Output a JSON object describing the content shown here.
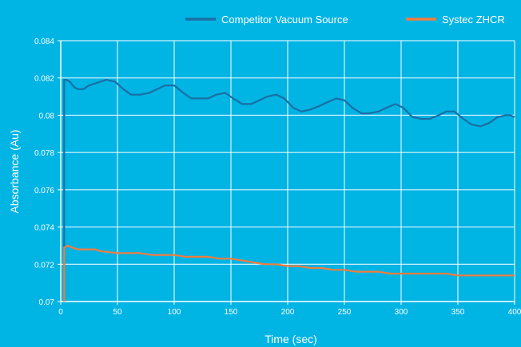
{
  "colors": {
    "background": "#00b4e4",
    "grid": "#ffffff",
    "text": "#ffffff"
  },
  "chart_data": {
    "type": "line",
    "title": "",
    "xlabel": "Time (sec)",
    "ylabel": "Absorbance (Au)",
    "xlim": [
      0,
      400
    ],
    "ylim": [
      0.07,
      0.084
    ],
    "x_ticks": [
      0,
      50,
      100,
      150,
      200,
      250,
      300,
      350,
      400
    ],
    "x_tick_labels": [
      "0",
      "50",
      "100",
      "150",
      "200",
      "250",
      "300",
      "350",
      "400"
    ],
    "y_ticks": [
      0.07,
      0.072,
      0.074,
      0.076,
      0.078,
      0.08,
      0.082,
      0.084
    ],
    "y_tick_labels": [
      "0.07",
      "0.072",
      "0.074",
      "0.076",
      "0.078",
      "0.08",
      "0.082",
      "0.084"
    ],
    "grid": true,
    "legend_position": "top-right",
    "series": [
      {
        "name": "Competitor Vacuum Source",
        "color": "#1a6fa4",
        "points": [
          [
            3,
            0.07
          ],
          [
            3,
            0.0819
          ],
          [
            5,
            0.0819
          ],
          [
            8,
            0.0818
          ],
          [
            12,
            0.0815
          ],
          [
            15,
            0.0814
          ],
          [
            20,
            0.0814
          ],
          [
            25,
            0.0816
          ],
          [
            30,
            0.0817
          ],
          [
            35,
            0.0818
          ],
          [
            40,
            0.0819
          ],
          [
            48,
            0.0818
          ],
          [
            55,
            0.0814
          ],
          [
            62,
            0.0811
          ],
          [
            70,
            0.0811
          ],
          [
            78,
            0.0812
          ],
          [
            85,
            0.0814
          ],
          [
            92,
            0.0816
          ],
          [
            100,
            0.0816
          ],
          [
            108,
            0.0812
          ],
          [
            115,
            0.0809
          ],
          [
            122,
            0.0809
          ],
          [
            130,
            0.0809
          ],
          [
            137,
            0.0811
          ],
          [
            145,
            0.0812
          ],
          [
            152,
            0.0809
          ],
          [
            160,
            0.0806
          ],
          [
            168,
            0.0806
          ],
          [
            175,
            0.0808
          ],
          [
            182,
            0.081
          ],
          [
            190,
            0.0811
          ],
          [
            197,
            0.0809
          ],
          [
            205,
            0.0804
          ],
          [
            212,
            0.0802
          ],
          [
            220,
            0.0803
          ],
          [
            228,
            0.0805
          ],
          [
            235,
            0.0807
          ],
          [
            243,
            0.0809
          ],
          [
            250,
            0.0808
          ],
          [
            257,
            0.0804
          ],
          [
            265,
            0.0801
          ],
          [
            272,
            0.0801
          ],
          [
            280,
            0.0802
          ],
          [
            287,
            0.0804
          ],
          [
            295,
            0.0806
          ],
          [
            302,
            0.0804
          ],
          [
            310,
            0.0799
          ],
          [
            318,
            0.0798
          ],
          [
            325,
            0.0798
          ],
          [
            333,
            0.08
          ],
          [
            340,
            0.0802
          ],
          [
            347,
            0.0802
          ],
          [
            355,
            0.0798
          ],
          [
            362,
            0.0795
          ],
          [
            370,
            0.0794
          ],
          [
            378,
            0.0796
          ],
          [
            385,
            0.0799
          ],
          [
            392,
            0.08
          ],
          [
            396,
            0.08
          ],
          [
            400,
            0.0799
          ]
        ]
      },
      {
        "name": "Systec ZHCR",
        "color": "#f47c3c",
        "points": [
          [
            3,
            0.07
          ],
          [
            3,
            0.0729
          ],
          [
            6,
            0.073
          ],
          [
            10,
            0.0729
          ],
          [
            15,
            0.0728
          ],
          [
            20,
            0.0728
          ],
          [
            30,
            0.0728
          ],
          [
            35,
            0.0727
          ],
          [
            50,
            0.0726
          ],
          [
            60,
            0.0726
          ],
          [
            70,
            0.0726
          ],
          [
            80,
            0.0725
          ],
          [
            90,
            0.0725
          ],
          [
            100,
            0.0725
          ],
          [
            110,
            0.0724
          ],
          [
            120,
            0.0724
          ],
          [
            130,
            0.0724
          ],
          [
            140,
            0.0723
          ],
          [
            150,
            0.0723
          ],
          [
            160,
            0.0722
          ],
          [
            170,
            0.0721
          ],
          [
            180,
            0.072
          ],
          [
            190,
            0.072
          ],
          [
            200,
            0.0719
          ],
          [
            210,
            0.0719
          ],
          [
            220,
            0.0718
          ],
          [
            230,
            0.0718
          ],
          [
            240,
            0.0717
          ],
          [
            250,
            0.0717
          ],
          [
            260,
            0.0716
          ],
          [
            270,
            0.0716
          ],
          [
            280,
            0.0716
          ],
          [
            290,
            0.0715
          ],
          [
            300,
            0.0715
          ],
          [
            310,
            0.0715
          ],
          [
            320,
            0.0715
          ],
          [
            330,
            0.0715
          ],
          [
            340,
            0.0715
          ],
          [
            350,
            0.0714
          ],
          [
            360,
            0.0714
          ],
          [
            370,
            0.0714
          ],
          [
            380,
            0.0714
          ],
          [
            390,
            0.0714
          ],
          [
            400,
            0.0714
          ]
        ]
      }
    ]
  }
}
